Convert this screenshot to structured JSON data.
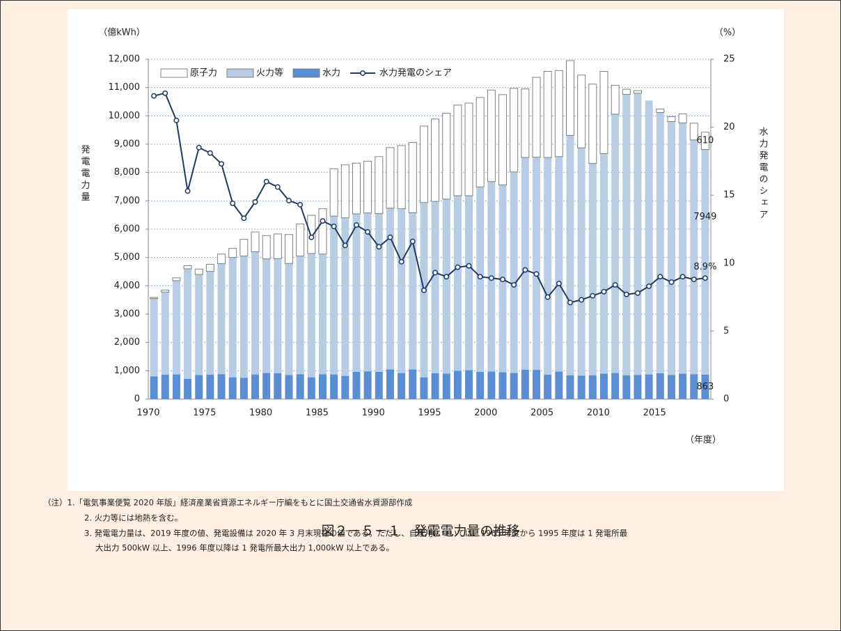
{
  "chart_data": {
    "type": "bar",
    "y_unit": "（億kWh）",
    "y2_unit": "（%）",
    "ylabel": "発電電力量",
    "y2label": "水力発電のシェア",
    "xlabel": "（年度）",
    "caption": "図２－５－１　発電電力量の推移",
    "notes": [
      "（注）1.「電気事業便覧 2020 年版」経済産業省資源エネルギー庁編をもとに国土交通省水資源部作成",
      "2. 火力等には地熱を含む。",
      "3. 発電電力量は、2019 年度の値、発電設備は 2020 年 3 月末現在の値である。ただし、自家用については、1965 年度から 1995 年度は 1 発電所最",
      "大出力 500kW 以上、1996 年度以降は 1 発電所最大出力 1,000kW 以上である。"
    ],
    "categories": [
      "1970",
      null,
      null,
      null,
      null,
      "1975",
      null,
      null,
      null,
      null,
      "1980",
      null,
      null,
      null,
      null,
      "1985",
      null,
      null,
      null,
      null,
      "1990",
      null,
      null,
      null,
      null,
      "1995",
      null,
      null,
      null,
      null,
      "2000",
      null,
      null,
      null,
      null,
      "2005",
      null,
      null,
      null,
      null,
      "2010",
      null,
      null,
      null,
      null,
      "2015",
      null,
      null,
      null,
      null
    ],
    "stacked": true,
    "series": [
      {
        "name": "水力",
        "color": "#5a8ed4",
        "values": [
          800,
          860,
          870,
          720,
          850,
          860,
          880,
          770,
          750,
          870,
          920,
          910,
          850,
          880,
          770,
          880,
          870,
          820,
          960,
          980,
          960,
          1050,
          920,
          1050,
          770,
          910,
          900,
          1000,
          1020,
          960,
          970,
          950,
          920,
          1040,
          1030,
          860,
          970,
          840,
          830,
          840,
          900,
          920,
          840,
          850,
          870,
          910,
          850,
          900,
          880,
          863
        ],
        "value_labels": [
          null,
          null,
          null,
          null,
          null,
          null,
          null,
          null,
          null,
          null,
          null,
          null,
          null,
          null,
          null,
          null,
          null,
          null,
          null,
          null,
          null,
          null,
          null,
          null,
          null,
          null,
          null,
          null,
          null,
          null,
          null,
          null,
          null,
          null,
          null,
          null,
          null,
          null,
          null,
          null,
          null,
          null,
          null,
          null,
          null,
          null,
          null,
          null,
          null,
          "863"
        ]
      },
      {
        "name": "火力等",
        "color": "#b8cce4",
        "values": [
          2750,
          2920,
          3310,
          3880,
          3550,
          3650,
          3900,
          4230,
          4300,
          4330,
          4030,
          4050,
          3940,
          4170,
          4370,
          4240,
          5590,
          5580,
          5580,
          5590,
          5590,
          5690,
          5800,
          5530,
          6170,
          6070,
          6160,
          6180,
          6160,
          6530,
          6710,
          6610,
          7100,
          7490,
          7510,
          7670,
          7590,
          8470,
          8040,
          7480,
          7770,
          9140,
          9920,
          9950,
          9670,
          9210,
          8950,
          8850,
          8270,
          7949
        ],
        "value_labels": [
          null,
          null,
          null,
          null,
          null,
          null,
          null,
          null,
          null,
          null,
          null,
          null,
          null,
          null,
          null,
          null,
          null,
          null,
          null,
          null,
          null,
          null,
          null,
          null,
          null,
          null,
          null,
          null,
          null,
          null,
          null,
          null,
          null,
          null,
          null,
          null,
          null,
          null,
          null,
          null,
          null,
          null,
          null,
          null,
          null,
          null,
          null,
          null,
          null,
          "7949"
        ]
      },
      {
        "name": "原子力",
        "color": "#ffffff",
        "values": [
          40,
          70,
          100,
          110,
          190,
          250,
          340,
          320,
          590,
          700,
          820,
          870,
          1020,
          1130,
          1350,
          1600,
          1670,
          1870,
          1790,
          1830,
          2010,
          2140,
          2230,
          2480,
          2700,
          2910,
          3030,
          3200,
          3270,
          3160,
          3230,
          3190,
          2950,
          2420,
          2820,
          3040,
          3040,
          2640,
          2570,
          2800,
          2900,
          1020,
          180,
          90,
          0,
          120,
          170,
          320,
          590,
          610
        ],
        "value_labels": [
          null,
          null,
          null,
          null,
          null,
          null,
          null,
          null,
          null,
          null,
          null,
          null,
          null,
          null,
          null,
          null,
          null,
          null,
          null,
          null,
          null,
          null,
          null,
          null,
          null,
          null,
          null,
          null,
          null,
          null,
          null,
          null,
          null,
          null,
          null,
          null,
          null,
          null,
          null,
          null,
          null,
          null,
          null,
          null,
          null,
          null,
          null,
          null,
          null,
          "610"
        ]
      },
      {
        "name": "水力発電のシェア",
        "type": "line",
        "axis": "y2",
        "color": "#1f3864",
        "values": [
          22.3,
          22.5,
          20.5,
          15.3,
          18.5,
          18.1,
          17.3,
          14.4,
          13.3,
          14.5,
          16.0,
          15.6,
          14.6,
          14.3,
          11.9,
          13.1,
          12.7,
          11.3,
          12.8,
          12.3,
          11.2,
          11.9,
          10.1,
          11.6,
          8.0,
          9.3,
          9.0,
          9.7,
          9.8,
          9.0,
          8.9,
          8.8,
          8.4,
          9.5,
          9.2,
          7.5,
          8.5,
          7.1,
          7.3,
          7.6,
          7.9,
          8.4,
          7.7,
          7.8,
          8.3,
          9.0,
          8.6,
          9.0,
          8.8,
          8.9
        ],
        "value_labels": [
          null,
          null,
          null,
          null,
          null,
          null,
          null,
          null,
          null,
          null,
          null,
          null,
          null,
          null,
          null,
          null,
          null,
          null,
          null,
          null,
          null,
          null,
          null,
          null,
          null,
          null,
          null,
          null,
          null,
          null,
          null,
          null,
          null,
          null,
          null,
          null,
          null,
          null,
          null,
          null,
          null,
          null,
          null,
          null,
          null,
          null,
          null,
          null,
          null,
          "8.9%"
        ]
      }
    ],
    "ylim": [
      0,
      12000
    ],
    "yticks": [
      0,
      {
        "value": 1000,
        "label": "1,000"
      },
      {
        "value": 2000,
        "label": "2,000"
      },
      {
        "value": 3000,
        "label": "3,000"
      },
      {
        "value": 4000,
        "label": "4,000"
      },
      {
        "value": 5000,
        "label": "5,000"
      },
      {
        "value": 6000,
        "label": "6,000"
      },
      {
        "value": 7000,
        "label": "7,000"
      },
      {
        "value": 8000,
        "label": "8,000"
      },
      {
        "value": 9000,
        "label": "9,000"
      },
      {
        "value": 10000,
        "label": "10,000"
      },
      {
        "value": 11000,
        "label": "11,000"
      },
      {
        "value": 12000,
        "label": "12,000"
      }
    ],
    "y2lim": [
      0,
      25
    ],
    "y2ticks": [
      0,
      5,
      10,
      15,
      20,
      25
    ],
    "grid": true,
    "legend": "top-left"
  }
}
